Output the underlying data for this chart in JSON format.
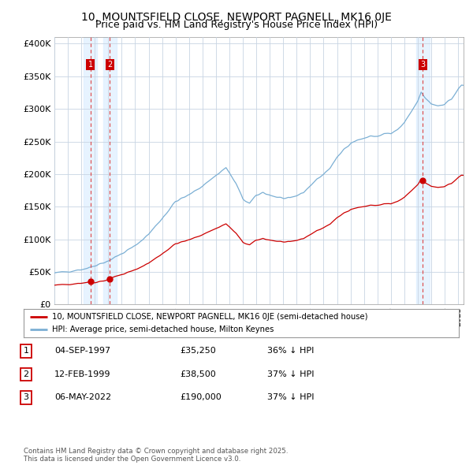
{
  "title": "10, MOUNTSFIELD CLOSE, NEWPORT PAGNELL, MK16 0JE",
  "subtitle": "Price paid vs. HM Land Registry's House Price Index (HPI)",
  "title_fontsize": 10,
  "subtitle_fontsize": 9,
  "background_color": "#ffffff",
  "plot_bg_color": "#ffffff",
  "grid_color": "#c8d4e3",
  "purchases": [
    {
      "date_num": 1997.67,
      "price": 35250,
      "label": "1"
    },
    {
      "date_num": 1999.12,
      "price": 38500,
      "label": "2"
    },
    {
      "date_num": 2022.37,
      "price": 190000,
      "label": "3"
    }
  ],
  "legend_entries": [
    "10, MOUNTSFIELD CLOSE, NEWPORT PAGNELL, MK16 0JE (semi-detached house)",
    "HPI: Average price, semi-detached house, Milton Keynes"
  ],
  "table_data": [
    [
      "1",
      "04-SEP-1997",
      "£35,250",
      "36% ↓ HPI"
    ],
    [
      "2",
      "12-FEB-1999",
      "£38,500",
      "37% ↓ HPI"
    ],
    [
      "3",
      "06-MAY-2022",
      "£190,000",
      "37% ↓ HPI"
    ]
  ],
  "footer": "Contains HM Land Registry data © Crown copyright and database right 2025.\nThis data is licensed under the Open Government Licence v3.0.",
  "ylabel_ticks": [
    "£0",
    "£50K",
    "£100K",
    "£150K",
    "£200K",
    "£250K",
    "£300K",
    "£350K",
    "£400K"
  ],
  "ytick_values": [
    0,
    50000,
    100000,
    150000,
    200000,
    250000,
    300000,
    350000,
    400000
  ],
  "red_line_color": "#cc0000",
  "blue_line_color": "#7bafd4",
  "dashed_line_color": "#dd4444",
  "shade_color": "#ddeeff",
  "marker_color": "#cc0000",
  "label_box_color": "#cc0000"
}
